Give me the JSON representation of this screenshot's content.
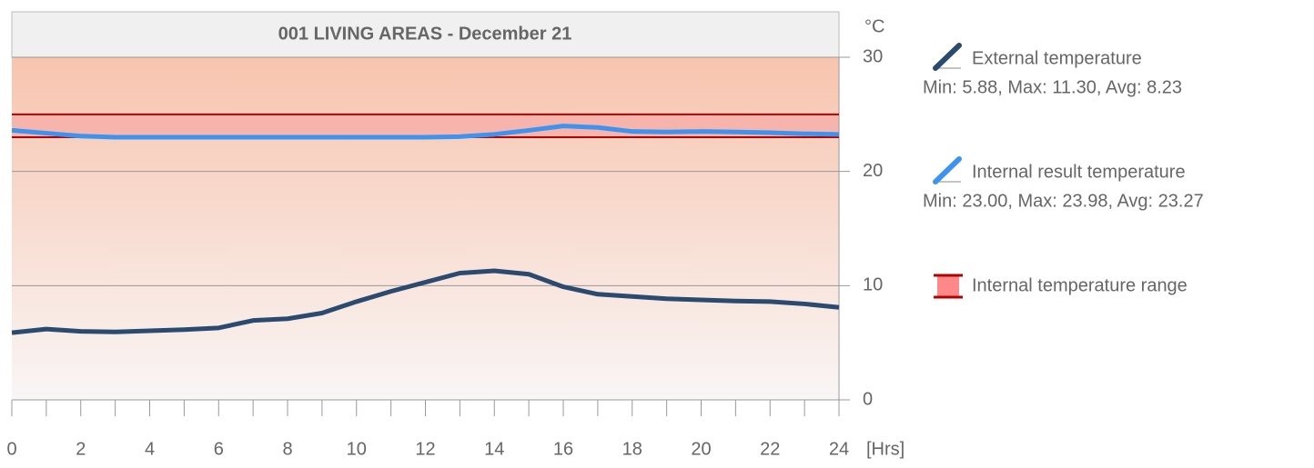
{
  "chart_data": {
    "type": "line",
    "title": "001 LIVING AREAS - December 21",
    "y_label": "°C",
    "x_label": "[Hrs]",
    "x": [
      0,
      1,
      2,
      3,
      4,
      5,
      6,
      7,
      8,
      9,
      10,
      11,
      12,
      13,
      14,
      15,
      16,
      17,
      18,
      19,
      20,
      21,
      22,
      23,
      24
    ],
    "xlim": [
      0,
      24
    ],
    "xticks": [
      0,
      2,
      4,
      6,
      8,
      10,
      12,
      14,
      16,
      18,
      20,
      22,
      24
    ],
    "ylim": [
      0,
      30
    ],
    "yticks": [
      0,
      10,
      20,
      30
    ],
    "grid": true,
    "series": [
      {
        "name": "External temperature",
        "color": "#2b4a6f",
        "stats": "Min: 5.88, Max: 11.30, Avg: 8.23",
        "values": [
          5.88,
          6.2,
          6.0,
          5.95,
          6.05,
          6.15,
          6.3,
          6.95,
          7.1,
          7.6,
          8.6,
          9.5,
          10.3,
          11.1,
          11.3,
          11.0,
          9.9,
          9.25,
          9.05,
          8.85,
          8.75,
          8.65,
          8.6,
          8.4,
          8.1
        ]
      },
      {
        "name": "Internal result temperature",
        "color": "#3d94f0",
        "stats": "Min: 23.00, Max: 23.98, Avg: 23.27",
        "values": [
          23.6,
          23.35,
          23.1,
          23.0,
          23.0,
          23.0,
          23.0,
          23.0,
          23.0,
          23.0,
          23.0,
          23.0,
          23.0,
          23.05,
          23.25,
          23.6,
          23.98,
          23.85,
          23.5,
          23.45,
          23.5,
          23.45,
          23.4,
          23.3,
          23.25
        ]
      }
    ],
    "range": {
      "name": "Internal temperature range",
      "color": "#b30000",
      "values": [
        23,
        25
      ]
    }
  }
}
